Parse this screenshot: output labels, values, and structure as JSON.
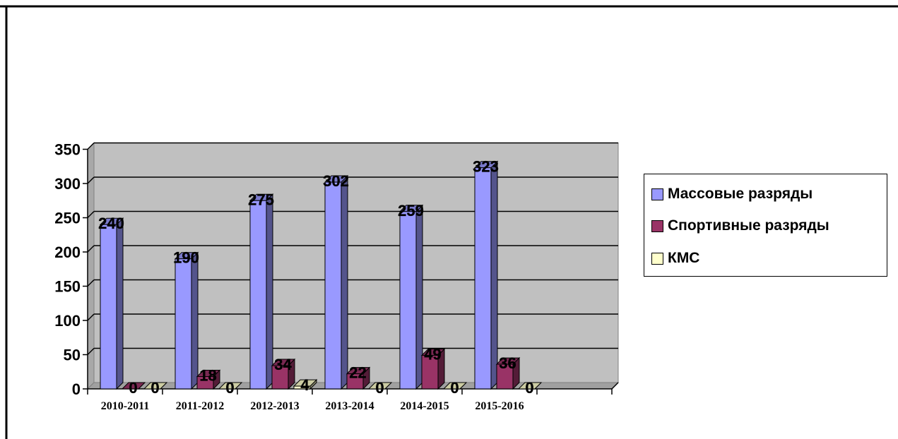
{
  "chart_data": {
    "type": "bar",
    "categories": [
      "2010-2011",
      "2011-2012",
      "2012-2013",
      "2013-2014",
      "2014-2015",
      "2015-2016"
    ],
    "series": [
      {
        "name": "Массовые разряды",
        "values": [
          240,
          190,
          275,
          302,
          259,
          323
        ],
        "color": "#9999ff"
      },
      {
        "name": "Спортивные разряды",
        "values": [
          0,
          18,
          34,
          22,
          49,
          36
        ],
        "color": "#993366"
      },
      {
        "name": "КМС",
        "values": [
          0,
          0,
          4,
          0,
          0,
          0
        ],
        "color": "#ffffcc"
      }
    ],
    "ylim": [
      0,
      350
    ],
    "yticks": [
      0,
      50,
      100,
      150,
      200,
      250,
      300,
      350
    ],
    "grid": true,
    "legend_position": "right",
    "plot_background": "#c0c0c0"
  },
  "legend": {
    "items": [
      {
        "label": "Массовые разряды",
        "color": "#9999ff"
      },
      {
        "label": "Спортивные разряды",
        "color": "#993366"
      },
      {
        "label": "КМС",
        "color": "#ffffcc"
      }
    ]
  }
}
